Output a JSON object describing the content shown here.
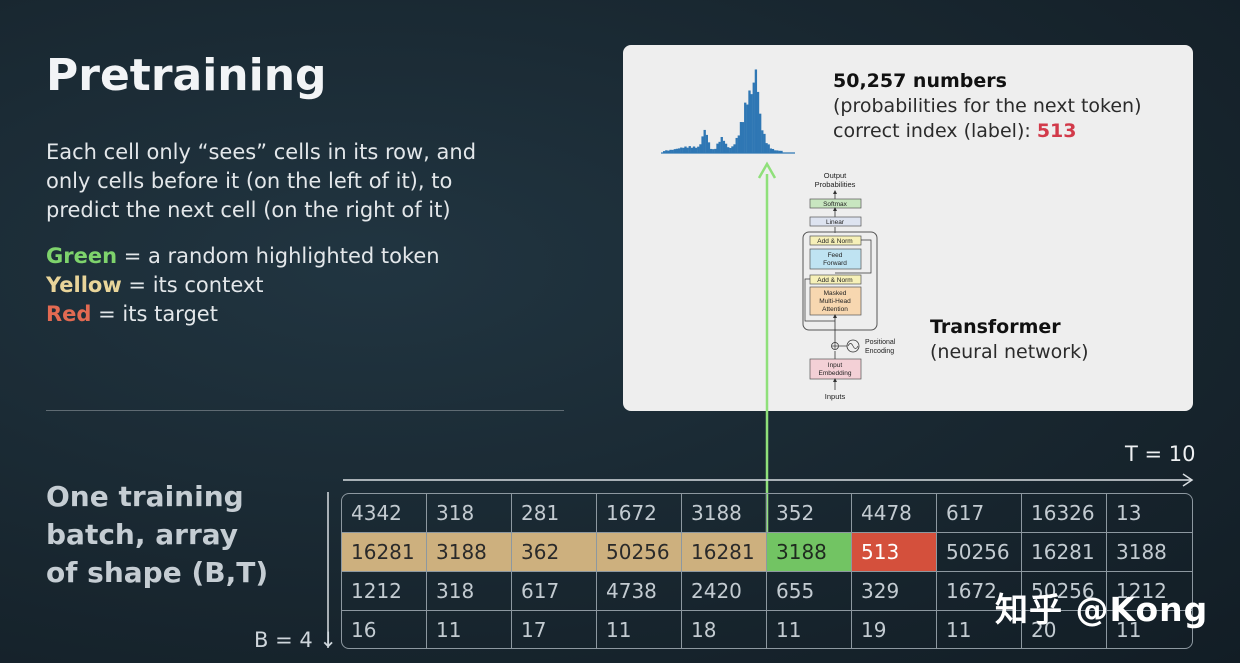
{
  "title": "Pretraining",
  "description": "Each cell only “sees” cells in its row, and only cells before it (on the left of it), to predict the next cell (on the right of it)",
  "legend": [
    {
      "word": "Green",
      "text": " = a random highlighted token",
      "color": "#7ed36c"
    },
    {
      "word": "Yellow",
      "text": " = its context",
      "color": "#e9d59a"
    },
    {
      "word": "Red",
      "text": " = its target",
      "color": "#e26a52"
    }
  ],
  "output_panel": {
    "line1": "50,257 numbers",
    "line2": "(probabilities for the next token)",
    "line3_prefix": "correct index (label): ",
    "line3_value": "513"
  },
  "transformer": {
    "title": "Transformer",
    "subtitle": "(neural network)",
    "blocks": {
      "output_probs": "Output\nProbabilities",
      "softmax": "Softmax",
      "linear": "Linear",
      "add_norm": "Add & Norm",
      "feed_forward": "Feed\nForward",
      "masked_attention": "Masked\nMulti-Head\nAttention",
      "positional": "Positional\nEncoding",
      "input_embedding": "Input\nEmbedding",
      "inputs": "Inputs"
    }
  },
  "axis": {
    "t_label": "T = 10",
    "b_label": "B = 4 ↓"
  },
  "batch_label": [
    "One training",
    "batch, array",
    "of shape (B,T)"
  ],
  "batch": {
    "rows": [
      [
        "4342",
        "318",
        "281",
        "1672",
        "3188",
        "352",
        "4478",
        "617",
        "16326",
        "13"
      ],
      [
        "16281",
        "3188",
        "362",
        "50256",
        "16281",
        "3188",
        "513",
        "50256",
        "16281",
        "3188"
      ],
      [
        "1212",
        "318",
        "617",
        "4738",
        "2420",
        "655",
        "329",
        "1672",
        "50256",
        "1212"
      ],
      [
        "16",
        "11",
        "17",
        "11",
        "18",
        "11",
        "19",
        "11",
        "20",
        "11"
      ]
    ],
    "highlight_row": 1,
    "context_cols": [
      0,
      1,
      2,
      3,
      4
    ],
    "highlight_col": 5,
    "target_col": 6
  },
  "colors": {
    "context": "#cdb07e",
    "highlight": "#72c463",
    "target": "#d4503c",
    "arrow": "#8fe07a"
  },
  "watermark": "知乎 @Kong"
}
